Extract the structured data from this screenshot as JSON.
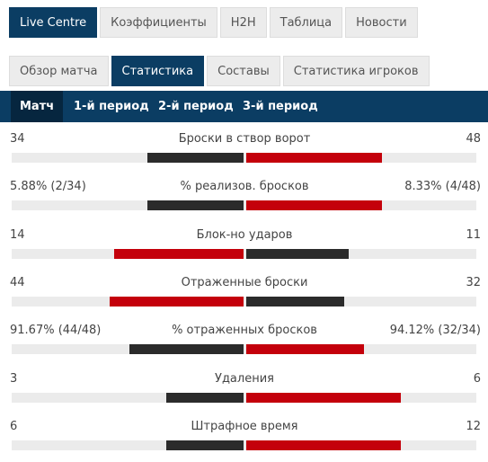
{
  "tabs": [
    "Live Centre",
    "Коэффициенты",
    "H2H",
    "Таблица",
    "Новости"
  ],
  "active_tab": 0,
  "subtabs": [
    "Обзор матча",
    "Статистика",
    "Составы",
    "Статистика игроков"
  ],
  "active_subtab": 1,
  "periods": [
    "Матч",
    "1-й период",
    "2-й период",
    "3-й период"
  ],
  "active_period": 0,
  "colors": {
    "higher": "#c4000b",
    "lower": "#2b2b2b"
  },
  "stats": [
    {
      "name": "Броски в створ ворот",
      "values": [
        34,
        48
      ]
    },
    {
      "name": "% реализов. бросков",
      "values": [
        5.88,
        8.33
      ],
      "value_labels": [
        "5.88% (2/34)",
        "8.33% (4/48)"
      ]
    },
    {
      "name": "Блок-но ударов",
      "values": [
        14,
        11
      ]
    },
    {
      "name": "Отраженные броски",
      "values": [
        44,
        32
      ]
    },
    {
      "name": "% отраженных бросков",
      "values": [
        91.67,
        94.12
      ],
      "value_labels": [
        "91.67% (44/48)",
        "94.12% (32/34)"
      ]
    },
    {
      "name": "Удаления",
      "values": [
        3,
        6
      ]
    },
    {
      "name": "Штрафное время",
      "values": [
        6,
        12
      ]
    }
  ]
}
